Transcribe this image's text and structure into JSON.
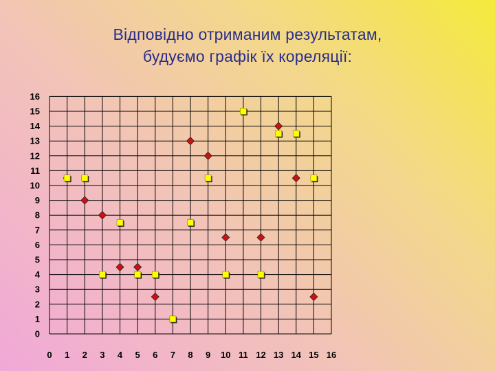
{
  "slide": {
    "title_line1": "Відповідно отриманим результатам,",
    "title_line2": "будуємо графік їх кореляції:"
  },
  "chart_data": {
    "type": "scatter",
    "title": "",
    "xlabel": "",
    "ylabel": "",
    "xlim": [
      0,
      16
    ],
    "ylim": [
      0,
      16
    ],
    "grid": true,
    "x_ticks": [
      0,
      1,
      2,
      3,
      4,
      5,
      6,
      7,
      8,
      9,
      10,
      11,
      12,
      13,
      14,
      15,
      16
    ],
    "y_ticks": [
      0,
      1,
      2,
      3,
      4,
      5,
      6,
      7,
      8,
      9,
      10,
      11,
      12,
      13,
      14,
      15,
      16
    ],
    "series": [
      {
        "marker": "diamond",
        "color": "#cc1111",
        "points": [
          [
            1,
            10.5
          ],
          [
            2,
            9
          ],
          [
            3,
            8
          ],
          [
            4,
            4.5
          ],
          [
            5,
            4.5
          ],
          [
            6,
            2.5
          ],
          [
            8,
            13
          ],
          [
            9,
            12
          ],
          [
            10,
            6.5
          ],
          [
            12,
            6.5
          ],
          [
            13,
            14
          ],
          [
            14,
            10.5
          ],
          [
            15,
            2.5
          ]
        ]
      },
      {
        "marker": "square",
        "color": "#ffff00",
        "points": [
          [
            1,
            10.5
          ],
          [
            2,
            10.5
          ],
          [
            3,
            4
          ],
          [
            4,
            7.5
          ],
          [
            5,
            4
          ],
          [
            6,
            4
          ],
          [
            7,
            1
          ],
          [
            8,
            7.5
          ],
          [
            9,
            10.5
          ],
          [
            10,
            4
          ],
          [
            11,
            15
          ],
          [
            12,
            4
          ],
          [
            13,
            13.5
          ],
          [
            14,
            13.5
          ],
          [
            15,
            10.5
          ]
        ]
      }
    ]
  }
}
